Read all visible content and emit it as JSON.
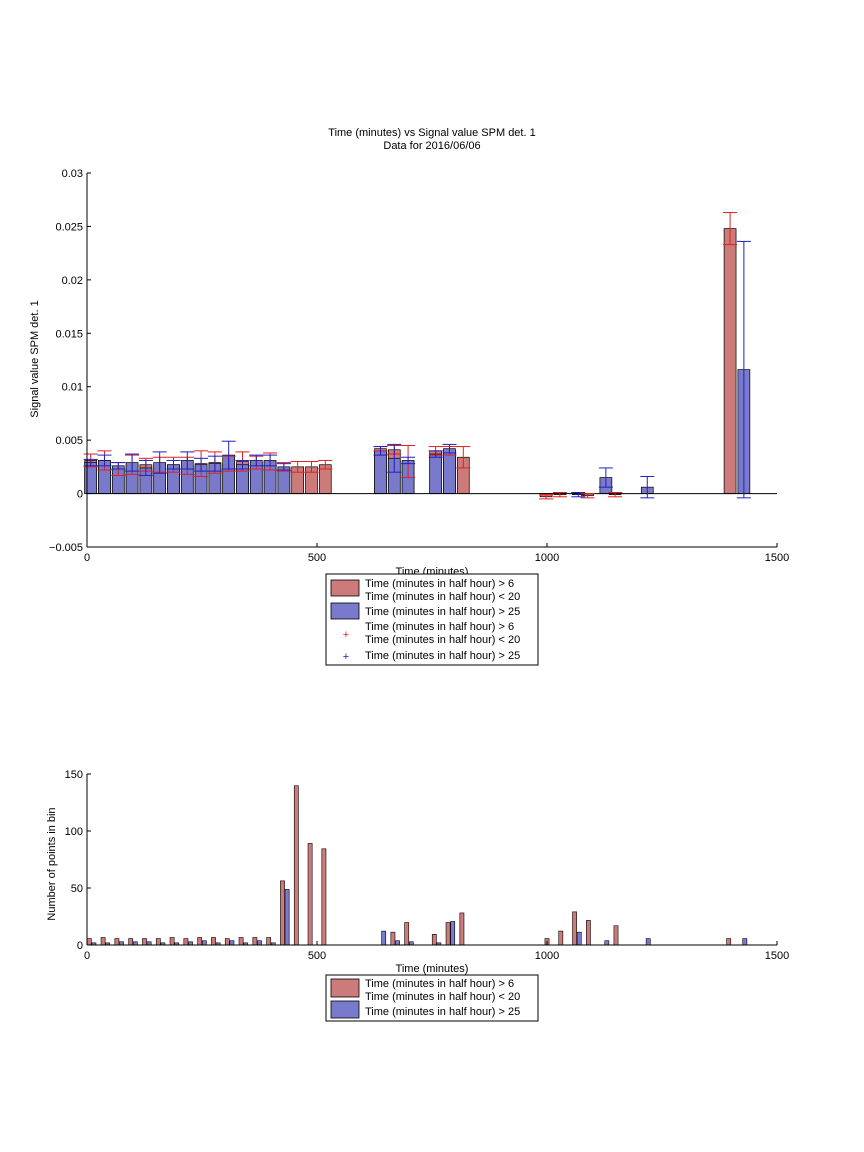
{
  "chart_data": [
    {
      "type": "bar",
      "title": "Time (minutes) vs Signal value SPM det. 1",
      "subtitle": "Data for 2016/06/06",
      "xlabel": "Time (minutes)",
      "ylabel": "Signal value SPM det. 1",
      "xlim": [
        0,
        1500
      ],
      "ylim": [
        -0.005,
        0.03
      ],
      "xticks": [
        "0",
        "500",
        "1000",
        "1500"
      ],
      "yticks": [
        "−0.005",
        "0",
        "0.005",
        "0.01",
        "0.015",
        "0.02",
        "0.025",
        "0.03"
      ],
      "legend": {
        "placement": "below-axes",
        "entries": [
          {
            "marker": "bar",
            "color": "#cc7a7a",
            "lines": [
              "Time (minutes in half hour) > 6",
              "Time (minutes in half hour) < 20"
            ]
          },
          {
            "marker": "bar",
            "color": "#7a7acc",
            "lines": [
              "Time (minutes in half hour) > 25"
            ]
          },
          {
            "marker": "plus",
            "color": "#e02020",
            "lines": [
              "Time (minutes in half hour) > 6",
              "Time (minutes in half hour) < 20"
            ]
          },
          {
            "marker": "plus",
            "color": "#2020c0",
            "lines": [
              "Time (minutes in half hour) > 25"
            ]
          }
        ]
      },
      "series": [
        {
          "color": "#cc7a7a",
          "err_color": "#e02020",
          "points": [
            {
              "x": 8,
              "y": 0.0031,
              "err": 0.0006
            },
            {
              "x": 38,
              "y": 0.0031,
              "err": 0.0009
            },
            {
              "x": 68,
              "y": 0.0023,
              "err": 0.0006
            },
            {
              "x": 98,
              "y": 0.0027,
              "err": 0.0009
            },
            {
              "x": 128,
              "y": 0.0027,
              "err": 0.0006
            },
            {
              "x": 158,
              "y": 0.0027,
              "err": 0.0007
            },
            {
              "x": 188,
              "y": 0.0027,
              "err": 0.0007
            },
            {
              "x": 218,
              "y": 0.0026,
              "err": 0.0008
            },
            {
              "x": 248,
              "y": 0.0028,
              "err": 0.0012
            },
            {
              "x": 278,
              "y": 0.0029,
              "err": 0.001
            },
            {
              "x": 308,
              "y": 0.0028,
              "err": 0.0007
            },
            {
              "x": 338,
              "y": 0.003,
              "err": 0.0009
            },
            {
              "x": 368,
              "y": 0.0029,
              "err": 0.0006
            },
            {
              "x": 398,
              "y": 0.003,
              "err": 0.0008
            },
            {
              "x": 428,
              "y": 0.0025,
              "err": 0.0004
            },
            {
              "x": 458,
              "y": 0.0025,
              "err": 0.0005
            },
            {
              "x": 488,
              "y": 0.0025,
              "err": 0.0005
            },
            {
              "x": 518,
              "y": 0.0027,
              "err": 0.0004
            },
            {
              "x": 638,
              "y": 0.0042,
              "err": 0.0002
            },
            {
              "x": 668,
              "y": 0.0041,
              "err": 0.0004
            },
            {
              "x": 698,
              "y": 0.003,
              "err": 0.0015
            },
            {
              "x": 758,
              "y": 0.004,
              "err": 0.0004
            },
            {
              "x": 788,
              "y": 0.004,
              "err": 0.0004
            },
            {
              "x": 818,
              "y": 0.0034,
              "err": 0.001
            },
            {
              "x": 998,
              "y": -0.0003,
              "err": 0.0002
            },
            {
              "x": 1028,
              "y": -0.0001,
              "err": 0.0002
            },
            {
              "x": 1088,
              "y": -0.0002,
              "err": 0.0002
            },
            {
              "x": 1148,
              "y": -0.0001,
              "err": 0.0002
            },
            {
              "x": 1398,
              "y": 0.0248,
              "err": 0.0015
            }
          ]
        },
        {
          "color": "#7a7acc",
          "err_color": "#2020c0",
          "points": [
            {
              "x": 8,
              "y": 0.0029,
              "err": 0.0003
            },
            {
              "x": 38,
              "y": 0.0031,
              "err": 0.0005
            },
            {
              "x": 68,
              "y": 0.0026,
              "err": 0.0003
            },
            {
              "x": 98,
              "y": 0.0029,
              "err": 0.0008
            },
            {
              "x": 128,
              "y": 0.0024,
              "err": 0.0007
            },
            {
              "x": 158,
              "y": 0.0029,
              "err": 0.001
            },
            {
              "x": 188,
              "y": 0.0027,
              "err": 0.0004
            },
            {
              "x": 218,
              "y": 0.0031,
              "err": 0.0008
            },
            {
              "x": 248,
              "y": 0.0027,
              "err": 0.0006
            },
            {
              "x": 278,
              "y": 0.0028,
              "err": 0.0007
            },
            {
              "x": 308,
              "y": 0.0036,
              "err": 0.0013
            },
            {
              "x": 338,
              "y": 0.0027,
              "err": 0.0004
            },
            {
              "x": 368,
              "y": 0.0031,
              "err": 0.0005
            },
            {
              "x": 398,
              "y": 0.0031,
              "err": 0.0005
            },
            {
              "x": 428,
              "y": 0.0025,
              "err": 0.0003
            },
            {
              "x": 638,
              "y": 0.004,
              "err": 0.0004
            },
            {
              "x": 668,
              "y": 0.0033,
              "err": 0.0013
            },
            {
              "x": 698,
              "y": 0.0031,
              "err": 0.0003
            },
            {
              "x": 758,
              "y": 0.0037,
              "err": 0.0003
            },
            {
              "x": 788,
              "y": 0.0042,
              "err": 0.0004
            },
            {
              "x": 1068,
              "y": -0.0001,
              "err": 0.0002
            },
            {
              "x": 1128,
              "y": 0.0015,
              "err": 0.0009
            },
            {
              "x": 1218,
              "y": 0.0006,
              "err": 0.001
            },
            {
              "x": 1428,
              "y": 0.0116,
              "err": 0.012
            }
          ]
        }
      ]
    },
    {
      "type": "bar",
      "xlabel": "Time (minutes)",
      "ylabel": "Number of points in bin",
      "xlim": [
        0,
        1500
      ],
      "ylim": [
        0,
        160
      ],
      "xticks": [
        "0",
        "500",
        "1000",
        "1500"
      ],
      "yticks": [
        "0",
        "50",
        "100",
        "150"
      ],
      "legend": {
        "placement": "below-axes",
        "entries": [
          {
            "marker": "bar",
            "color": "#cc7a7a",
            "lines": [
              "Time (minutes in half hour) > 6",
              "Time (minutes in half hour) < 20"
            ]
          },
          {
            "marker": "bar",
            "color": "#7a7acc",
            "lines": [
              "Time (minutes in half hour) > 25"
            ]
          }
        ]
      },
      "series": [
        {
          "color": "#cc7a7a",
          "points": [
            {
              "x": 5,
              "y": 6
            },
            {
              "x": 35,
              "y": 7
            },
            {
              "x": 65,
              "y": 6
            },
            {
              "x": 95,
              "y": 6
            },
            {
              "x": 125,
              "y": 6
            },
            {
              "x": 155,
              "y": 6
            },
            {
              "x": 185,
              "y": 7
            },
            {
              "x": 215,
              "y": 6
            },
            {
              "x": 245,
              "y": 7
            },
            {
              "x": 275,
              "y": 7
            },
            {
              "x": 305,
              "y": 6
            },
            {
              "x": 335,
              "y": 7
            },
            {
              "x": 365,
              "y": 7
            },
            {
              "x": 395,
              "y": 7
            },
            {
              "x": 425,
              "y": 60
            },
            {
              "x": 455,
              "y": 149
            },
            {
              "x": 485,
              "y": 95
            },
            {
              "x": 515,
              "y": 90
            },
            {
              "x": 665,
              "y": 12
            },
            {
              "x": 695,
              "y": 21
            },
            {
              "x": 755,
              "y": 10
            },
            {
              "x": 785,
              "y": 21
            },
            {
              "x": 815,
              "y": 30
            },
            {
              "x": 1000,
              "y": 6
            },
            {
              "x": 1030,
              "y": 13
            },
            {
              "x": 1060,
              "y": 31
            },
            {
              "x": 1090,
              "y": 23
            },
            {
              "x": 1150,
              "y": 18
            },
            {
              "x": 1395,
              "y": 6
            }
          ]
        },
        {
          "color": "#7a7acc",
          "points": [
            {
              "x": 15,
              "y": 2
            },
            {
              "x": 45,
              "y": 2
            },
            {
              "x": 75,
              "y": 3
            },
            {
              "x": 105,
              "y": 3
            },
            {
              "x": 135,
              "y": 3
            },
            {
              "x": 165,
              "y": 2
            },
            {
              "x": 195,
              "y": 2
            },
            {
              "x": 225,
              "y": 3
            },
            {
              "x": 255,
              "y": 4
            },
            {
              "x": 285,
              "y": 2
            },
            {
              "x": 315,
              "y": 4
            },
            {
              "x": 345,
              "y": 2
            },
            {
              "x": 375,
              "y": 4
            },
            {
              "x": 405,
              "y": 2
            },
            {
              "x": 435,
              "y": 52
            },
            {
              "x": 645,
              "y": 13
            },
            {
              "x": 675,
              "y": 4
            },
            {
              "x": 705,
              "y": 3
            },
            {
              "x": 765,
              "y": 2
            },
            {
              "x": 795,
              "y": 22
            },
            {
              "x": 1070,
              "y": 12
            },
            {
              "x": 1130,
              "y": 4
            },
            {
              "x": 1220,
              "y": 6
            },
            {
              "x": 1430,
              "y": 6
            }
          ]
        }
      ]
    }
  ]
}
